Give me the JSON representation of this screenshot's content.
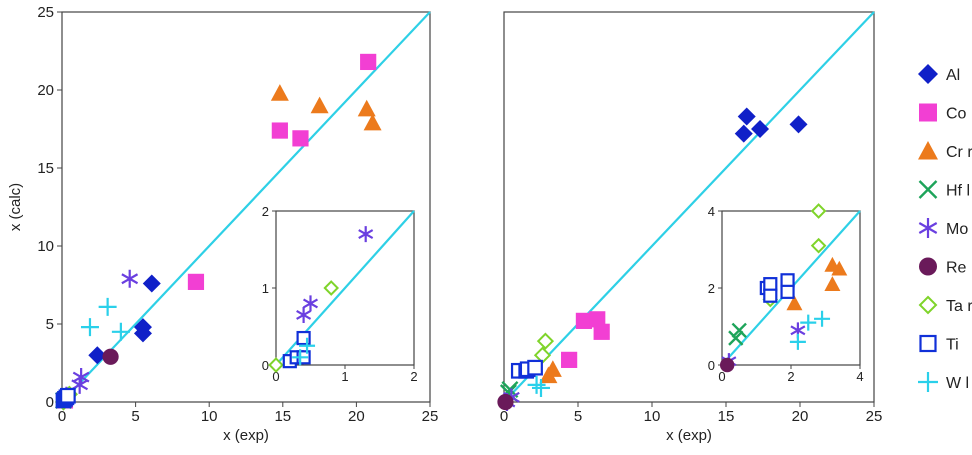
{
  "chart_data": [
    {
      "type": "scatter",
      "title": "",
      "xlabel": "x (exp)",
      "ylabel": "x (calc)",
      "xlim": [
        0,
        25
      ],
      "ylim": [
        0,
        25
      ],
      "xticks": [
        0,
        5,
        10,
        15,
        20,
        25
      ],
      "yticks": [
        0,
        5,
        10,
        15,
        20,
        25
      ],
      "reference_line": "y = x",
      "series": [
        {
          "name": "Al",
          "points": [
            [
              2.4,
              3.0
            ],
            [
              5.5,
              4.4
            ],
            [
              5.5,
              4.8
            ],
            [
              6.1,
              7.6
            ]
          ]
        },
        {
          "name": "Co",
          "points": [
            [
              0.2,
              0.1
            ],
            [
              9.1,
              7.7
            ],
            [
              14.8,
              17.4
            ],
            [
              16.2,
              16.9
            ],
            [
              20.8,
              21.8
            ]
          ]
        },
        {
          "name": "Cr",
          "points": [
            [
              14.8,
              19.8
            ],
            [
              17.5,
              19.0
            ],
            [
              20.7,
              18.8
            ],
            [
              21.1,
              17.9
            ]
          ]
        },
        {
          "name": "Hf",
          "points": [
            [
              0.1,
              0.1
            ]
          ]
        },
        {
          "name": "Mo",
          "points": [
            [
              0.3,
              0.4
            ],
            [
              1.2,
              1.1
            ],
            [
              1.3,
              1.6
            ],
            [
              4.6,
              7.9
            ]
          ]
        },
        {
          "name": "Re",
          "points": [
            [
              3.3,
              2.9
            ]
          ]
        },
        {
          "name": "Ta",
          "points": [
            [
              0.1,
              0.0
            ],
            [
              0.5,
              0.5
            ]
          ]
        },
        {
          "name": "Ti",
          "points": [
            [
              0.1,
              0.1
            ],
            [
              0.2,
              0.2
            ],
            [
              0.3,
              0.3
            ],
            [
              0.4,
              0.4
            ]
          ]
        },
        {
          "name": "W",
          "points": [
            [
              1.9,
              4.8
            ],
            [
              3.1,
              6.1
            ],
            [
              4.0,
              4.5
            ]
          ]
        }
      ],
      "inset": {
        "xlim": [
          0,
          2
        ],
        "ylim": [
          0,
          2
        ],
        "xticks": [
          0,
          1,
          2
        ],
        "yticks": [
          0,
          1,
          2
        ],
        "series": [
          {
            "name": "Mo",
            "points": [
              [
                0.4,
                0.65
              ],
              [
                0.5,
                0.8
              ],
              [
                1.3,
                1.7
              ]
            ]
          },
          {
            "name": "Ta",
            "points": [
              [
                0.0,
                0.0
              ],
              [
                0.8,
                1.0
              ]
            ]
          },
          {
            "name": "Ti",
            "points": [
              [
                0.2,
                0.05
              ],
              [
                0.3,
                0.1
              ],
              [
                0.4,
                0.1
              ],
              [
                0.4,
                0.35
              ]
            ]
          },
          {
            "name": "W",
            "points": [
              [
                0.35,
                0.1
              ],
              [
                0.45,
                0.25
              ]
            ]
          }
        ]
      }
    },
    {
      "type": "scatter",
      "title": "",
      "xlabel": "x (exp)",
      "ylabel": "",
      "xlim": [
        0,
        25
      ],
      "ylim": [
        0,
        25
      ],
      "xticks": [
        0,
        5,
        10,
        15,
        20,
        25
      ],
      "reference_line": "y = x",
      "series": [
        {
          "name": "Al",
          "points": [
            [
              16.2,
              17.2
            ],
            [
              16.4,
              18.3
            ],
            [
              17.3,
              17.5
            ],
            [
              19.9,
              17.8
            ]
          ]
        },
        {
          "name": "Co",
          "points": [
            [
              4.4,
              2.7
            ],
            [
              5.4,
              5.2
            ],
            [
              6.3,
              5.3
            ],
            [
              6.6,
              4.5
            ]
          ]
        },
        {
          "name": "Cr",
          "points": [
            [
              3.0,
              1.7
            ],
            [
              3.3,
              2.1
            ]
          ]
        },
        {
          "name": "Hf",
          "points": [
            [
              0.3,
              0.6
            ],
            [
              0.4,
              0.8
            ]
          ]
        },
        {
          "name": "Mo",
          "points": [
            [
              0.2,
              0.0
            ],
            [
              0.5,
              0.3
            ]
          ]
        },
        {
          "name": "Re",
          "points": [
            [
              0.1,
              0.0
            ]
          ]
        },
        {
          "name": "Ta",
          "points": [
            [
              2.6,
              3.0
            ],
            [
              2.8,
              3.9
            ]
          ]
        },
        {
          "name": "Ti",
          "points": [
            [
              1.0,
              2.0
            ],
            [
              1.5,
              2.0
            ],
            [
              1.6,
              2.1
            ],
            [
              2.1,
              2.2
            ]
          ]
        },
        {
          "name": "W",
          "points": [
            [
              2.2,
              1.1
            ],
            [
              2.5,
              0.9
            ]
          ]
        }
      ],
      "inset": {
        "xlim": [
          0,
          4
        ],
        "ylim": [
          0,
          4
        ],
        "xticks": [
          0,
          2,
          4
        ],
        "yticks": [
          0,
          2,
          4
        ],
        "series": [
          {
            "name": "Cr",
            "points": [
              [
                2.1,
                1.6
              ],
              [
                3.2,
                2.1
              ],
              [
                3.2,
                2.6
              ],
              [
                3.4,
                2.5
              ]
            ]
          },
          {
            "name": "Hf",
            "points": [
              [
                0.4,
                0.7
              ],
              [
                0.5,
                0.9
              ]
            ]
          },
          {
            "name": "Mo",
            "points": [
              [
                0.2,
                0.1
              ],
              [
                2.2,
                0.9
              ]
            ]
          },
          {
            "name": "Re",
            "points": [
              [
                0.15,
                0.0
              ]
            ]
          },
          {
            "name": "Ta",
            "points": [
              [
                1.4,
                1.7
              ],
              [
                2.8,
                3.1
              ],
              [
                2.8,
                4.0
              ]
            ]
          },
          {
            "name": "Ti",
            "points": [
              [
                1.3,
                2.0
              ],
              [
                1.4,
                2.1
              ],
              [
                1.9,
                2.2
              ],
              [
                1.9,
                1.9
              ],
              [
                1.4,
                1.8
              ]
            ]
          },
          {
            "name": "W",
            "points": [
              [
                2.2,
                0.6
              ],
              [
                2.9,
                1.2
              ],
              [
                2.5,
                1.1
              ]
            ]
          }
        ]
      }
    }
  ],
  "legend": {
    "placement": "right",
    "entries": [
      {
        "key": "Al",
        "label": "Al",
        "marker": "diamond",
        "color": "#1020c8"
      },
      {
        "key": "Co",
        "label": "Co",
        "marker": "square",
        "color": "#f23fd3"
      },
      {
        "key": "Cr",
        "label": "Cr r",
        "marker": "triangle",
        "color": "#ec7a1c"
      },
      {
        "key": "Hf",
        "label": "Hf l",
        "marker": "cross",
        "color": "#1ea45a"
      },
      {
        "key": "Mo",
        "label": "Mo",
        "marker": "asterisk",
        "color": "#6a3fe0"
      },
      {
        "key": "Re",
        "label": "Re",
        "marker": "circle",
        "color": "#6a1a5a"
      },
      {
        "key": "Ta",
        "label": "Ta r",
        "marker": "open-diamond",
        "color": "#7fd42a"
      },
      {
        "key": "Ti",
        "label": "Ti",
        "marker": "open-square",
        "color": "#1030d8"
      },
      {
        "key": "W",
        "label": "W l",
        "marker": "plus",
        "color": "#2ad0ea"
      }
    ]
  },
  "colors": {
    "reference_line": "#2ed0e6",
    "axis": "#444444"
  }
}
